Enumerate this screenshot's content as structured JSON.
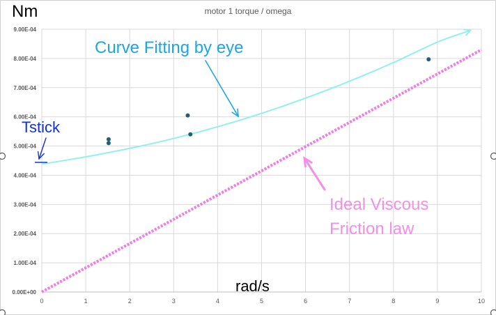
{
  "chart_data": {
    "type": "scatter",
    "title": "motor 1 torque / omega",
    "ylabel": "Nm",
    "xlabel": "rad/s",
    "xlim": [
      0,
      10
    ],
    "ylim": [
      0,
      0.0009
    ],
    "x_ticks": [
      0,
      1,
      2,
      3,
      4,
      5,
      6,
      7,
      8,
      9,
      10
    ],
    "x_tick_labels": [
      "0",
      "1",
      "2",
      "3",
      "4",
      "5",
      "6",
      "7",
      "8",
      "9",
      "10"
    ],
    "y_ticks": [
      0,
      0.0001,
      0.0002,
      0.0003,
      0.0004,
      0.0005,
      0.0006,
      0.0007,
      0.0008,
      0.0009
    ],
    "y_tick_labels": [
      "0.00E+00",
      "1.00E-04",
      "2.00E-04",
      "3.00E-04",
      "4.00E-04",
      "5.00E-04",
      "6.00E-04",
      "7.00E-04",
      "8.00E-04",
      "9.00E-04"
    ],
    "grid": true,
    "points": {
      "x": [
        1.52,
        1.52,
        3.32,
        3.38,
        8.8
      ],
      "y": [
        0.000523,
        0.00051,
        0.000605,
        0.00054,
        0.000797
      ],
      "color": "#1f5f7a"
    },
    "fitted_curve": {
      "x": [
        0,
        1,
        2,
        3,
        4,
        5,
        6,
        7,
        8,
        9,
        9.75
      ],
      "y": [
        0.000438,
        0.000463,
        0.000492,
        0.000526,
        0.000566,
        0.000612,
        0.000664,
        0.000722,
        0.000786,
        0.000856,
        0.000896
      ],
      "color": "#8ff0f0"
    },
    "viscous_line": {
      "x": [
        0,
        10
      ],
      "y": [
        0,
        0.00083
      ],
      "color": "#f07be8"
    },
    "annotations": {
      "curve_fit": {
        "text": "Curve Fitting by eye",
        "color": "#1aa7e8"
      },
      "tstick": {
        "text": "Tstick",
        "color": "#1030e0"
      },
      "viscous_line1": {
        "text": "Ideal Viscous",
        "color": "#f58fe6"
      },
      "viscous_line2": {
        "text": "Friction law",
        "color": "#f58fe6"
      }
    }
  }
}
